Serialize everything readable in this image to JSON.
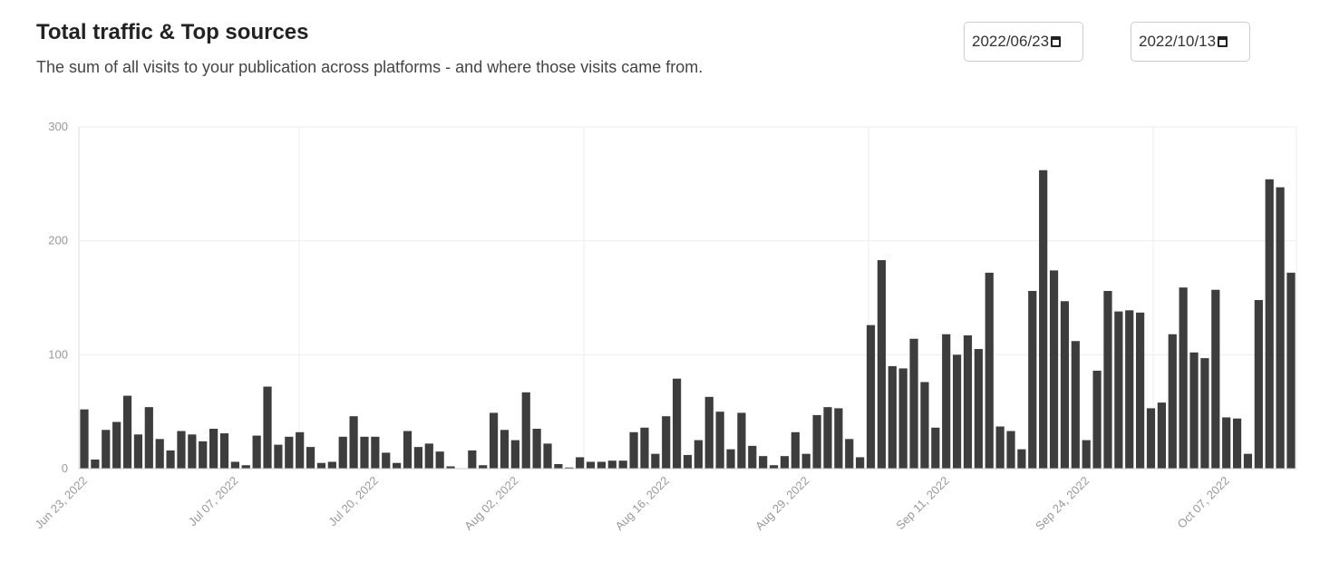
{
  "header": {
    "title": "Total traffic & Top sources",
    "subtitle": "The sum of all visits to your publication across platforms - and where those visits came from.",
    "start_date": "2022/06/23",
    "end_date": "2022/10/13"
  },
  "chart_data": {
    "type": "bar",
    "color": "#3d3d3d",
    "categories": [
      "Jun 23, 2022",
      null,
      null,
      null,
      null,
      null,
      null,
      null,
      null,
      null,
      null,
      null,
      null,
      null,
      "Jul 07, 2022",
      null,
      null,
      null,
      null,
      null,
      null,
      null,
      null,
      null,
      null,
      null,
      null,
      "Jul 20, 2022",
      null,
      null,
      null,
      null,
      null,
      null,
      null,
      null,
      null,
      null,
      null,
      null,
      "Aug 02, 2022",
      null,
      null,
      null,
      null,
      null,
      null,
      null,
      null,
      null,
      null,
      null,
      null,
      null,
      "Aug 16, 2022",
      null,
      null,
      null,
      null,
      null,
      null,
      null,
      null,
      null,
      null,
      null,
      null,
      "Aug 29, 2022",
      null,
      null,
      null,
      null,
      null,
      null,
      null,
      null,
      null,
      null,
      null,
      null,
      "Sep 11, 2022",
      null,
      null,
      null,
      null,
      null,
      null,
      null,
      null,
      null,
      null,
      null,
      null,
      "Sep 24, 2022",
      null,
      null,
      null,
      null,
      null,
      null,
      null,
      null,
      null,
      null,
      null,
      null,
      "Oct 07, 2022",
      null,
      null,
      null,
      null,
      null,
      null
    ],
    "values": [
      52,
      8,
      34,
      41,
      64,
      30,
      54,
      26,
      16,
      33,
      30,
      24,
      35,
      31,
      6,
      3,
      29,
      72,
      21,
      28,
      32,
      19,
      5,
      6,
      28,
      46,
      28,
      28,
      14,
      5,
      33,
      19,
      22,
      15,
      2,
      0,
      16,
      3,
      49,
      34,
      25,
      67,
      35,
      22,
      4,
      1,
      10,
      6,
      6,
      7,
      7,
      32,
      36,
      13,
      46,
      79,
      12,
      25,
      63,
      50,
      17,
      49,
      20,
      11,
      3,
      11,
      32,
      13,
      47,
      54,
      53,
      26,
      10,
      126,
      183,
      90,
      88,
      114,
      76,
      36,
      118,
      100,
      117,
      105,
      172,
      37,
      33,
      17,
      156,
      262,
      174,
      147,
      112,
      25,
      86,
      156,
      138,
      139,
      137,
      53,
      58,
      118,
      159,
      102,
      97,
      157,
      45,
      44,
      13,
      148,
      254,
      247,
      172
    ],
    "ylim": [
      0,
      300
    ],
    "yticks": [
      0,
      100,
      200,
      300
    ],
    "grid": true
  }
}
